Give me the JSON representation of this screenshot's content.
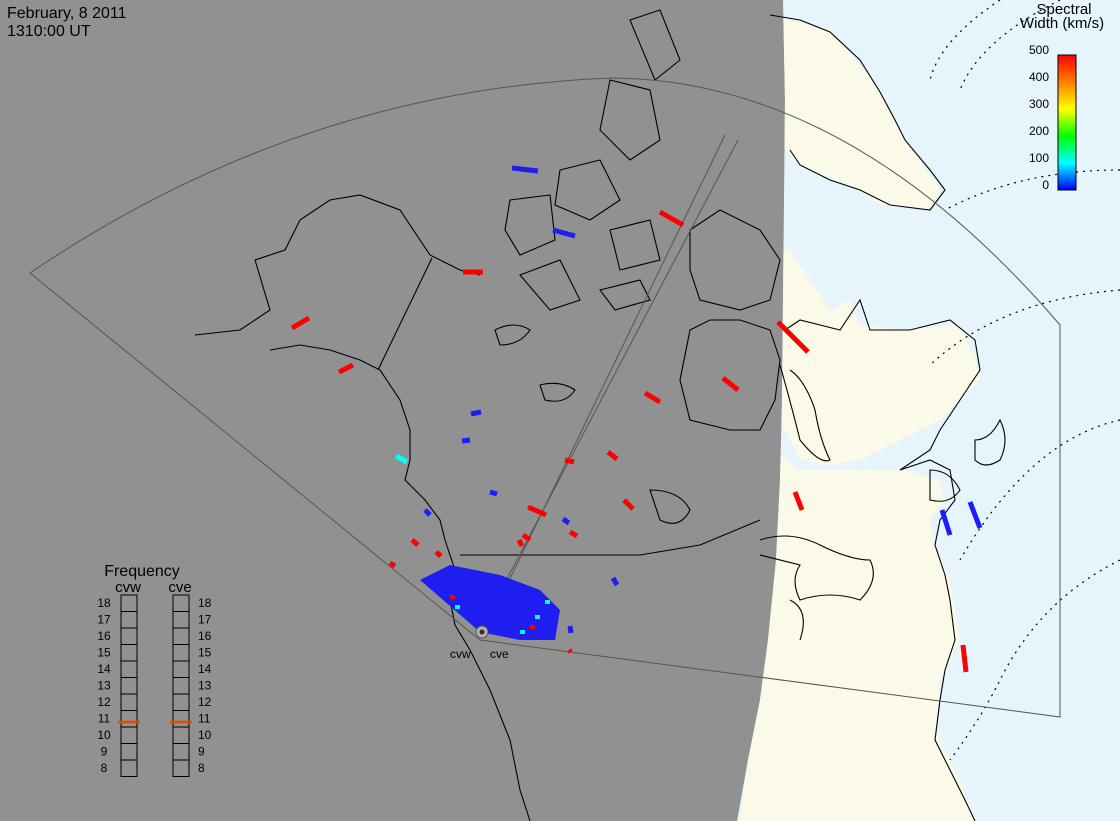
{
  "header": {
    "date": "February, 8 2011",
    "time": "1310:00 UT"
  },
  "colorbar": {
    "title_line1": "Spectral",
    "title_line2": "Width (km/s)",
    "ticks": [
      "500",
      "400",
      "300",
      "200",
      "100",
      "0"
    ],
    "min": 0,
    "max": 500
  },
  "frequency_panel": {
    "title": "Frequency",
    "radars": [
      {
        "code": "cvw",
        "current_mhz": 10.8
      },
      {
        "code": "cve",
        "current_mhz": 10.8
      }
    ],
    "scale": [
      "18",
      "17",
      "16",
      "15",
      "14",
      "13",
      "12",
      "11",
      "10",
      "9",
      "8"
    ],
    "marker_color": "#e64a00"
  },
  "radar_sites": [
    {
      "code": "cvw"
    },
    {
      "code": "cve"
    }
  ],
  "colors": {
    "night": "#919191",
    "land_day": "#fbf9e8",
    "ocean_day": "#e6f4fc",
    "low_width": "#1e1ef0",
    "high_width": "#ff0000",
    "mid_width": "#00ffff"
  },
  "echoes_spectral_width_kms": {
    "near_range_cluster": 0,
    "scattered_high": 450,
    "scattered_low": 20,
    "cyan": 150
  }
}
